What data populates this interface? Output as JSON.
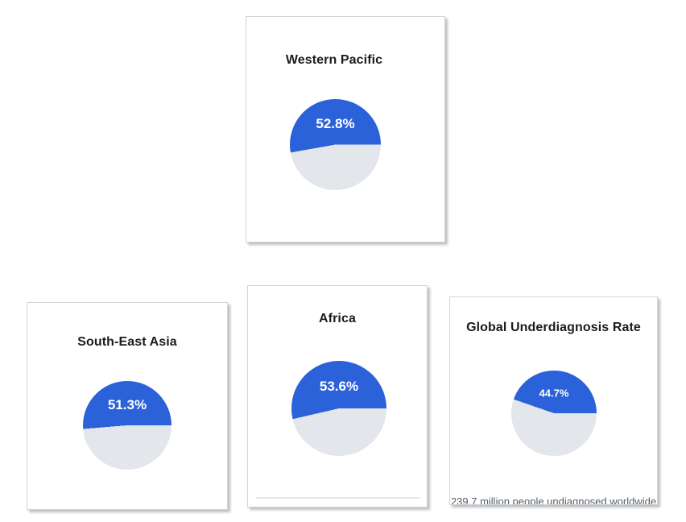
{
  "colors": {
    "page_background": "#ffffff",
    "card_background": "#ffffff",
    "card_border": "#d4d4d4",
    "slice_primary_blue": "#2b62da",
    "slice_remainder_gray": "#e3e6ea",
    "title_text": "#1b1b1b",
    "slice_label_text": "#ffffff",
    "caption_text": "#51606f"
  },
  "cards": [
    {
      "title": "Western Pacific",
      "value_pct": 52.8,
      "slice_label": "52.8%"
    },
    {
      "title": "South-East Asia",
      "value_pct": 51.3,
      "slice_label": "51.3%"
    },
    {
      "title": "Africa",
      "value_pct": 53.6,
      "slice_label": "53.6%"
    },
    {
      "title": "Global Underdiagnosis Rate",
      "value_pct": 44.7,
      "slice_label": "44.7%",
      "caption": "239.7 million people undiagnosed worldwide"
    }
  ],
  "chart_data": [
    {
      "type": "pie",
      "title": "Western Pacific",
      "values": [
        52.8,
        47.2
      ],
      "slice_labels": [
        "52.8%",
        ""
      ],
      "colors": [
        "#2b62da",
        "#e3e6ea"
      ],
      "legend": false,
      "start_of_blue_slice": "right (3 o'clock), sweeping counterclockwise over top"
    },
    {
      "type": "pie",
      "title": "South-East Asia",
      "values": [
        51.3,
        48.7
      ],
      "slice_labels": [
        "51.3%",
        ""
      ],
      "colors": [
        "#2b62da",
        "#e3e6ea"
      ],
      "legend": false,
      "start_of_blue_slice": "right (3 o'clock), sweeping counterclockwise over top"
    },
    {
      "type": "pie",
      "title": "Africa",
      "values": [
        53.6,
        46.4
      ],
      "slice_labels": [
        "53.6%",
        ""
      ],
      "colors": [
        "#2b62da",
        "#e3e6ea"
      ],
      "legend": false,
      "start_of_blue_slice": "right (3 o'clock), sweeping counterclockwise over top"
    },
    {
      "type": "pie",
      "title": "Global Underdiagnosis Rate",
      "values": [
        44.7,
        55.3
      ],
      "slice_labels": [
        "44.7%",
        ""
      ],
      "colors": [
        "#2b62da",
        "#e3e6ea"
      ],
      "legend": false,
      "annotation": "239.7 million people undiagnosed worldwide",
      "start_of_blue_slice": "right (3 o'clock), sweeping counterclockwise over top"
    }
  ]
}
